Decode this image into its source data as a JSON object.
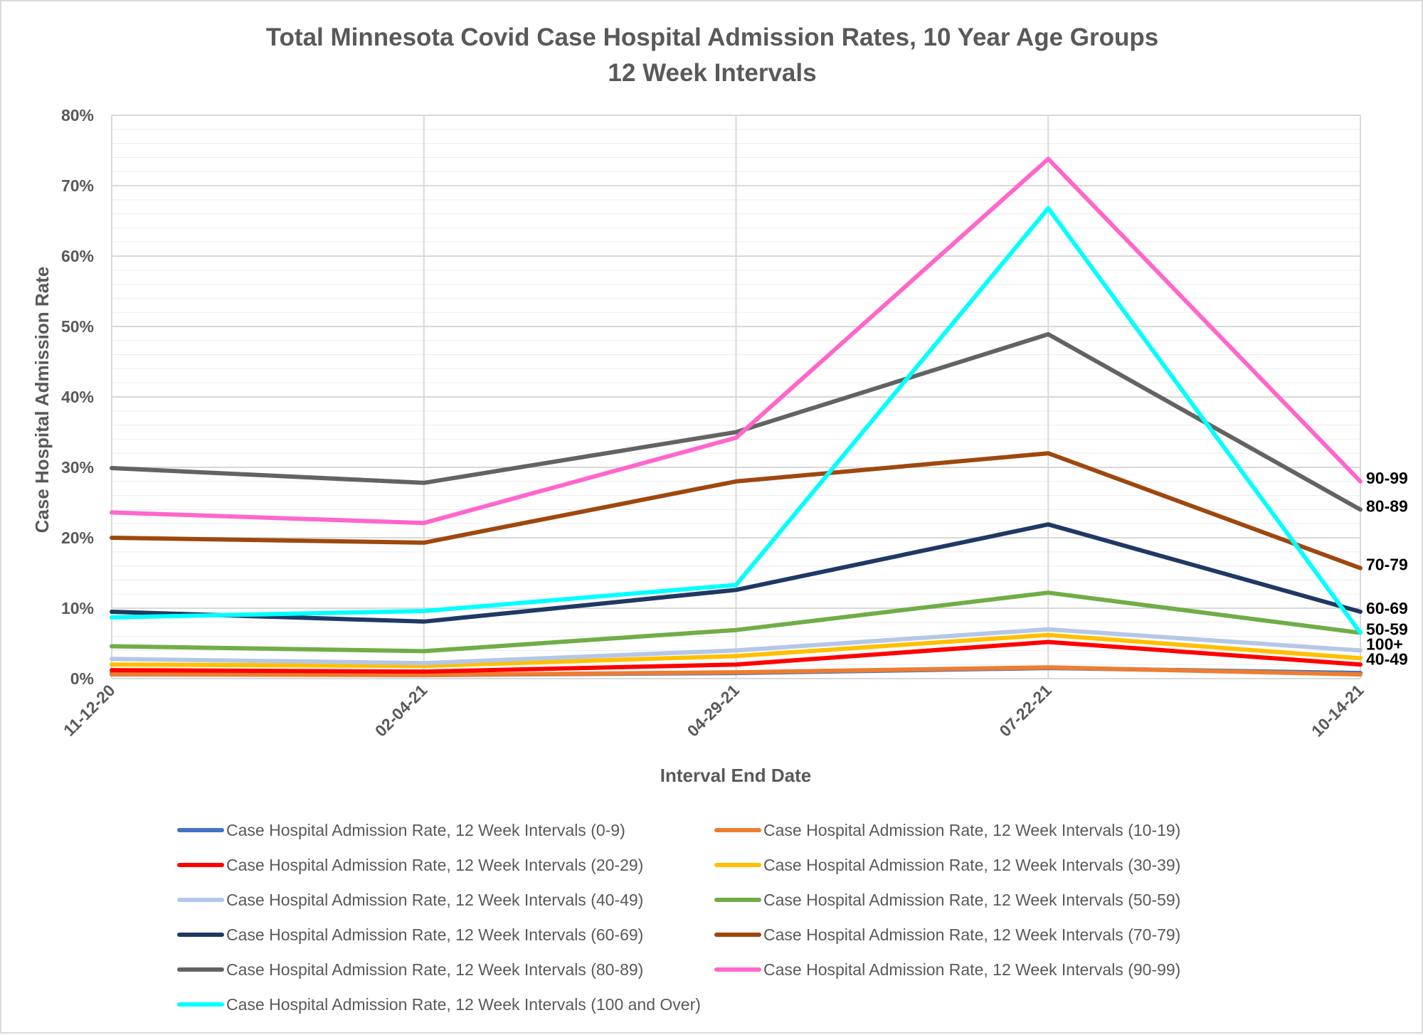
{
  "chart_data": {
    "type": "line",
    "title": "Total Minnesota Covid Case Hospital Admission Rates, 10 Year Age Groups",
    "subtitle": "12 Week Intervals",
    "xlabel": "Interval End Date",
    "ylabel": "Case Hospital Admission Rate",
    "categories": [
      "11-12-20",
      "02-04-21",
      "04-29-21",
      "07-22-21",
      "10-14-21"
    ],
    "ylim": [
      0,
      80
    ],
    "yticks": [
      "0%",
      "10%",
      "20%",
      "30%",
      "40%",
      "50%",
      "60%",
      "70%",
      "80%"
    ],
    "grid": true,
    "legend_position": "bottom",
    "series": [
      {
        "name": "Case Hospital Admission Rate, 12 Week Intervals (0-9)",
        "color": "#4472c4",
        "values": [
          0.8,
          0.5,
          0.8,
          1.5,
          0.8
        ],
        "end_label": ""
      },
      {
        "name": "Case Hospital Admission Rate, 12 Week Intervals (10-19)",
        "color": "#ed7d31",
        "values": [
          0.6,
          0.5,
          0.9,
          1.6,
          0.6
        ],
        "end_label": ""
      },
      {
        "name": "Case Hospital Admission Rate, 12 Week Intervals (20-29)",
        "color": "#ff0000",
        "values": [
          1.2,
          1.0,
          2.0,
          5.2,
          2.0
        ],
        "end_label": ""
      },
      {
        "name": "Case Hospital Admission Rate, 12 Week Intervals (30-39)",
        "color": "#ffc000",
        "values": [
          2.0,
          1.8,
          3.2,
          6.2,
          2.9
        ],
        "end_label": ""
      },
      {
        "name": "Case Hospital Admission Rate, 12 Week Intervals (40-49)",
        "color": "#b4c7e7",
        "values": [
          2.8,
          2.2,
          4.0,
          7.0,
          4.0
        ],
        "end_label": "40-49"
      },
      {
        "name": "Case Hospital Admission Rate, 12 Week Intervals (50-59)",
        "color": "#70ad47",
        "values": [
          4.6,
          3.9,
          6.9,
          12.2,
          6.5
        ],
        "end_label": "50-59"
      },
      {
        "name": "Case Hospital Admission Rate, 12 Week Intervals (60-69)",
        "color": "#203864",
        "values": [
          9.5,
          8.1,
          12.6,
          21.9,
          9.5
        ],
        "end_label": "60-69"
      },
      {
        "name": "Case Hospital Admission Rate, 12 Week Intervals (70-79)",
        "color": "#9e480e",
        "values": [
          20.0,
          19.3,
          28.0,
          32.0,
          15.7
        ],
        "end_label": "70-79"
      },
      {
        "name": "Case Hospital Admission Rate, 12 Week Intervals (80-89)",
        "color": "#636363",
        "values": [
          29.9,
          27.8,
          35.0,
          48.9,
          24.0
        ],
        "end_label": "80-89"
      },
      {
        "name": "Case Hospital Admission Rate, 12 Week Intervals (90-99)",
        "color": "#ff66cc",
        "values": [
          23.6,
          22.1,
          34.2,
          73.8,
          28.0
        ],
        "end_label": "90-99"
      },
      {
        "name": "Case Hospital Admission Rate, 12 Week Intervals (100 and Over)",
        "color": "#00ffff",
        "values": [
          8.7,
          9.6,
          13.3,
          66.8,
          6.5
        ],
        "end_label": "100+"
      }
    ]
  }
}
